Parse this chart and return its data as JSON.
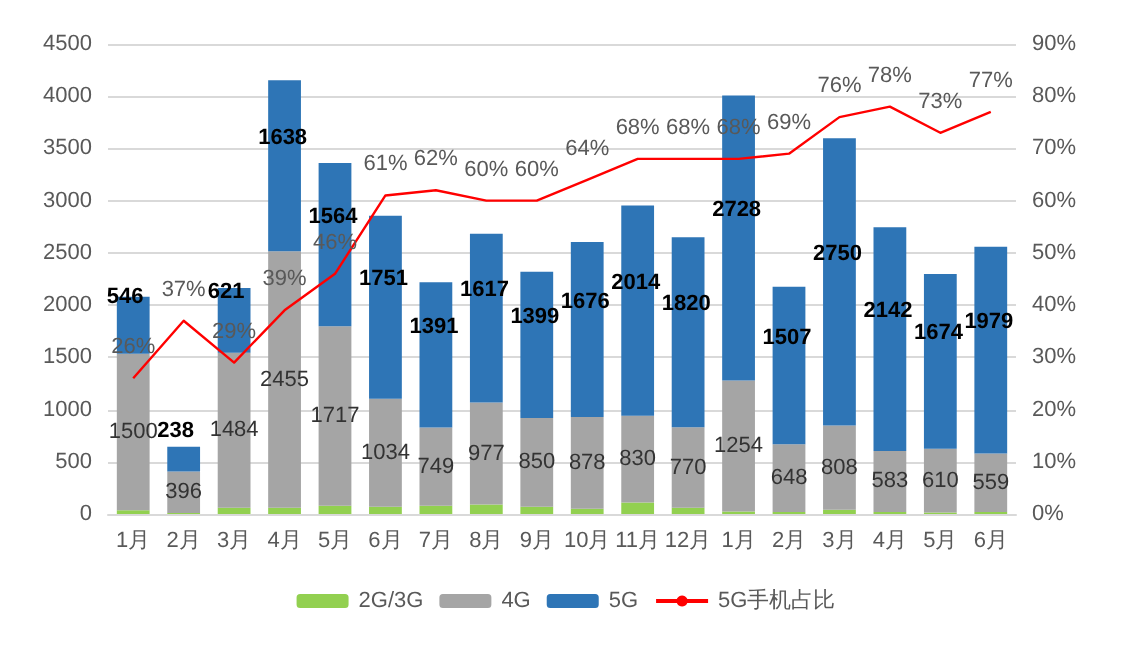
{
  "chart_data": {
    "type": "bar",
    "stacked": true,
    "categories": [
      "1月",
      "2月",
      "3月",
      "4月",
      "5月",
      "6月",
      "7月",
      "8月",
      "9月",
      "10月",
      "11月",
      "12月",
      "1月",
      "2月",
      "3月",
      "4月",
      "5月",
      "6月"
    ],
    "series": [
      {
        "name": "2G/3G",
        "color": "#92d050",
        "values": [
          35,
          10,
          60,
          60,
          80,
          70,
          80,
          90,
          70,
          50,
          110,
          60,
          25,
          20,
          40,
          20,
          15,
          20
        ]
      },
      {
        "name": "4G",
        "color": "#a5a5a5",
        "values": [
          1500,
          396,
          1484,
          2455,
          1717,
          1034,
          749,
          977,
          850,
          878,
          830,
          770,
          1254,
          648,
          808,
          583,
          610,
          559
        ],
        "value_labels": [
          "1500",
          "396",
          "1484",
          "2455",
          "1717",
          "1034",
          "749",
          "977",
          "850",
          "878",
          "830",
          "770",
          "1254",
          "648",
          "808",
          "583",
          "610",
          "559"
        ]
      },
      {
        "name": "5G",
        "color": "#2e75b6",
        "values": [
          546,
          238,
          621,
          1638,
          1564,
          1751,
          1391,
          1617,
          1399,
          1676,
          2014,
          1820,
          2728,
          1507,
          2750,
          2142,
          1674,
          1979
        ],
        "value_labels": [
          "546",
          "238",
          "621",
          "1638",
          "1564",
          "1751",
          "1391",
          "1617",
          "1399",
          "1676",
          "2014",
          "1820",
          "2728",
          "1507",
          "2750",
          "2142",
          "1674",
          "1979"
        ]
      },
      {
        "name": "5G手机占比",
        "type": "line",
        "axis": "y2",
        "color": "#ff0000",
        "values": [
          26,
          37,
          29,
          39,
          46,
          61,
          62,
          60,
          60,
          64,
          68,
          68,
          68,
          69,
          76,
          78,
          73,
          77
        ],
        "value_labels": [
          "26%",
          "37%",
          "29%",
          "39%",
          "46%",
          "61%",
          "62%",
          "60%",
          "60%",
          "64%",
          "68%",
          "68%",
          "68%",
          "69%",
          "76%",
          "78%",
          "73%",
          "77%"
        ]
      }
    ],
    "ylim": [
      0,
      4500
    ],
    "yticks": [
      0,
      500,
      1000,
      1500,
      2000,
      2500,
      3000,
      3500,
      4000,
      4500
    ],
    "y2lim": [
      0,
      90
    ],
    "y2ticks": [
      {
        "value": 0,
        "label": "0%"
      },
      {
        "value": 10,
        "label": "10%"
      },
      {
        "value": 20,
        "label": "20%"
      },
      {
        "value": 30,
        "label": "30%"
      },
      {
        "value": 40,
        "label": "40%"
      },
      {
        "value": 50,
        "label": "50%"
      },
      {
        "value": 60,
        "label": "60%"
      },
      {
        "value": 70,
        "label": "70%"
      },
      {
        "value": 80,
        "label": "80%"
      },
      {
        "value": 90,
        "label": "90%"
      }
    ],
    "grid": "y",
    "legend": "bottom",
    "marker": "none",
    "line_style": "solid"
  }
}
